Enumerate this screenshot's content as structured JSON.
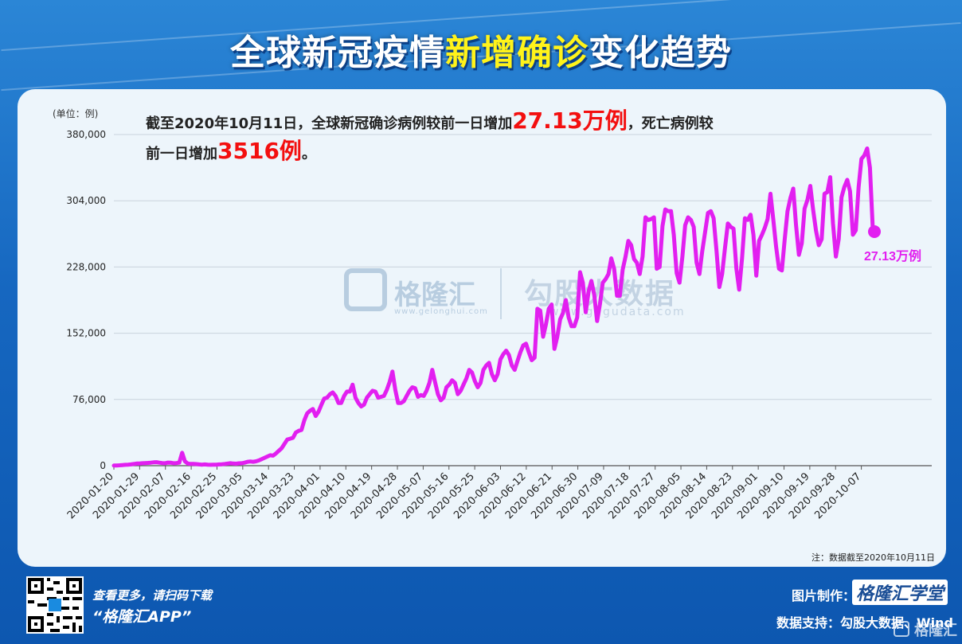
{
  "title": {
    "part1": "全球新冠疫情",
    "highlight": "新增确诊",
    "part2": "变化趋势"
  },
  "summary": {
    "line1_pre": "截至2020年10月11日，全球新冠确诊病例较前一日增加",
    "line1_big": "27.13万例",
    "line1_post": "，死亡病例较",
    "line2_pre": "前一日增加",
    "line2_big": "3516例",
    "line2_post": "。"
  },
  "watermark": {
    "brand1": "格隆汇",
    "brand1_url": "www.gelonghui.com",
    "brand2": "勾股大数据",
    "brand2_url": "www.gogudata.com"
  },
  "note": "注：数据截至2020年10月11日",
  "footer": {
    "scan_text": "查看更多，请扫码下载",
    "app_name": "“格隆汇APP”",
    "made_by_label": "图片制作：",
    "made_by_brand": "格隆汇学堂",
    "support": "数据支持：勾股大数据、Wind",
    "corner_brand": "格隆汇"
  },
  "colors": {
    "line": "#e21ff0",
    "highlight": "#fff31a",
    "red": "#f30f0f"
  },
  "chart_data": {
    "type": "line",
    "ylabel": "(单位：例)",
    "ylim": [
      0,
      380000
    ],
    "yticks": [
      "0",
      "76,000",
      "152,000",
      "228,000",
      "304,000",
      "380,000"
    ],
    "grid": true,
    "x_start": "2020-01-20",
    "x_end": "2020-10-11",
    "xtick_labels": [
      "2020-01-20",
      "2020-01-29",
      "2020-02-07",
      "2020-02-16",
      "2020-02-25",
      "2020-03-05",
      "2020-03-14",
      "2020-03-23",
      "2020-04-01",
      "2020-04-10",
      "2020-04-19",
      "2020-04-28",
      "2020-05-07",
      "2020-05-16",
      "2020-05-25",
      "2020-06-03",
      "2020-06-12",
      "2020-06-21",
      "2020-06-30",
      "2020-07-09",
      "2020-07-18",
      "2020-07-27",
      "2020-08-05",
      "2020-08-14",
      "2020-08-23",
      "2020-09-01",
      "2020-09-10",
      "2020-09-19",
      "2020-09-28",
      "2020-10-07"
    ],
    "series": [
      {
        "name": "",
        "values": [
          200,
          300,
          500,
          700,
          1000,
          1200,
          1500,
          2000,
          2500,
          2600,
          2800,
          3000,
          3200,
          3500,
          3800,
          4000,
          3500,
          3000,
          2800,
          3600,
          3500,
          2800,
          3000,
          3500,
          14800,
          5000,
          2500,
          2000,
          2000,
          1800,
          1500,
          1200,
          1500,
          1200,
          1000,
          1100,
          1200,
          1500,
          1600,
          2000,
          2500,
          2800,
          2500,
          2300,
          2700,
          2800,
          3500,
          4500,
          4800,
          4500,
          5000,
          6000,
          7500,
          9000,
          10500,
          12000,
          11500,
          14000,
          17000,
          20000,
          25000,
          30000,
          31000,
          32000,
          38000,
          40000,
          41000,
          52000,
          60000,
          63000,
          65000,
          57000,
          62000,
          70000,
          77000,
          78000,
          82000,
          84000,
          80000,
          72000,
          72000,
          80000,
          85000,
          85000,
          93000,
          78000,
          72000,
          68000,
          70000,
          78000,
          82000,
          86000,
          85000,
          78000,
          79000,
          80000,
          87000,
          96000,
          108000,
          87000,
          72000,
          72000,
          74000,
          80000,
          86000,
          90000,
          89000,
          79000,
          81000,
          80000,
          86000,
          95000,
          110000,
          96000,
          82000,
          75000,
          78000,
          90000,
          93000,
          98000,
          95000,
          82000,
          86000,
          93000,
          100000,
          110000,
          107000,
          97000,
          90000,
          95000,
          110000,
          115000,
          118000,
          105000,
          98000,
          105000,
          122000,
          128000,
          132000,
          127000,
          115000,
          110000,
          120000,
          130000,
          138000,
          140000,
          130000,
          121000,
          124000,
          180000,
          178000,
          148000,
          162000,
          180000,
          185000,
          134000,
          148000,
          168000,
          175000,
          190000,
          170000,
          160000,
          160000,
          170000,
          222000,
          210000,
          176000,
          200000,
          212000,
          196000,
          166000,
          185000,
          210000,
          214000,
          220000,
          238000,
          226000,
          195000,
          195000,
          225000,
          240000,
          258000,
          253000,
          237000,
          233000,
          220000,
          240000,
          285000,
          282000,
          283000,
          285000,
          226000,
          228000,
          275000,
          294000,
          292000,
          292000,
          265000,
          221000,
          210000,
          240000,
          276000,
          285000,
          282000,
          274000,
          233000,
          220000,
          246000,
          268000,
          290000,
          292000,
          284000,
          247000,
          205000,
          220000,
          250000,
          278000,
          274000,
          272000,
          226000,
          202000,
          238000,
          284000,
          282000,
          288000,
          265000,
          218000,
          258000,
          265000,
          273000,
          283000,
          312000,
          282000,
          251000,
          226000,
          224000,
          260000,
          292000,
          307000,
          318000,
          276000,
          242000,
          255000,
          295000,
          305000,
          321000,
          294000,
          270000,
          253000,
          260000,
          312000,
          314000,
          331000,
          278000,
          240000,
          260000,
          308000,
          320000,
          328000,
          315000,
          265000,
          270000,
          320000,
          352000,
          356000,
          364000,
          342000,
          271300
        ]
      }
    ],
    "annotation": {
      "label": "27.13万例",
      "value": 271300
    }
  }
}
